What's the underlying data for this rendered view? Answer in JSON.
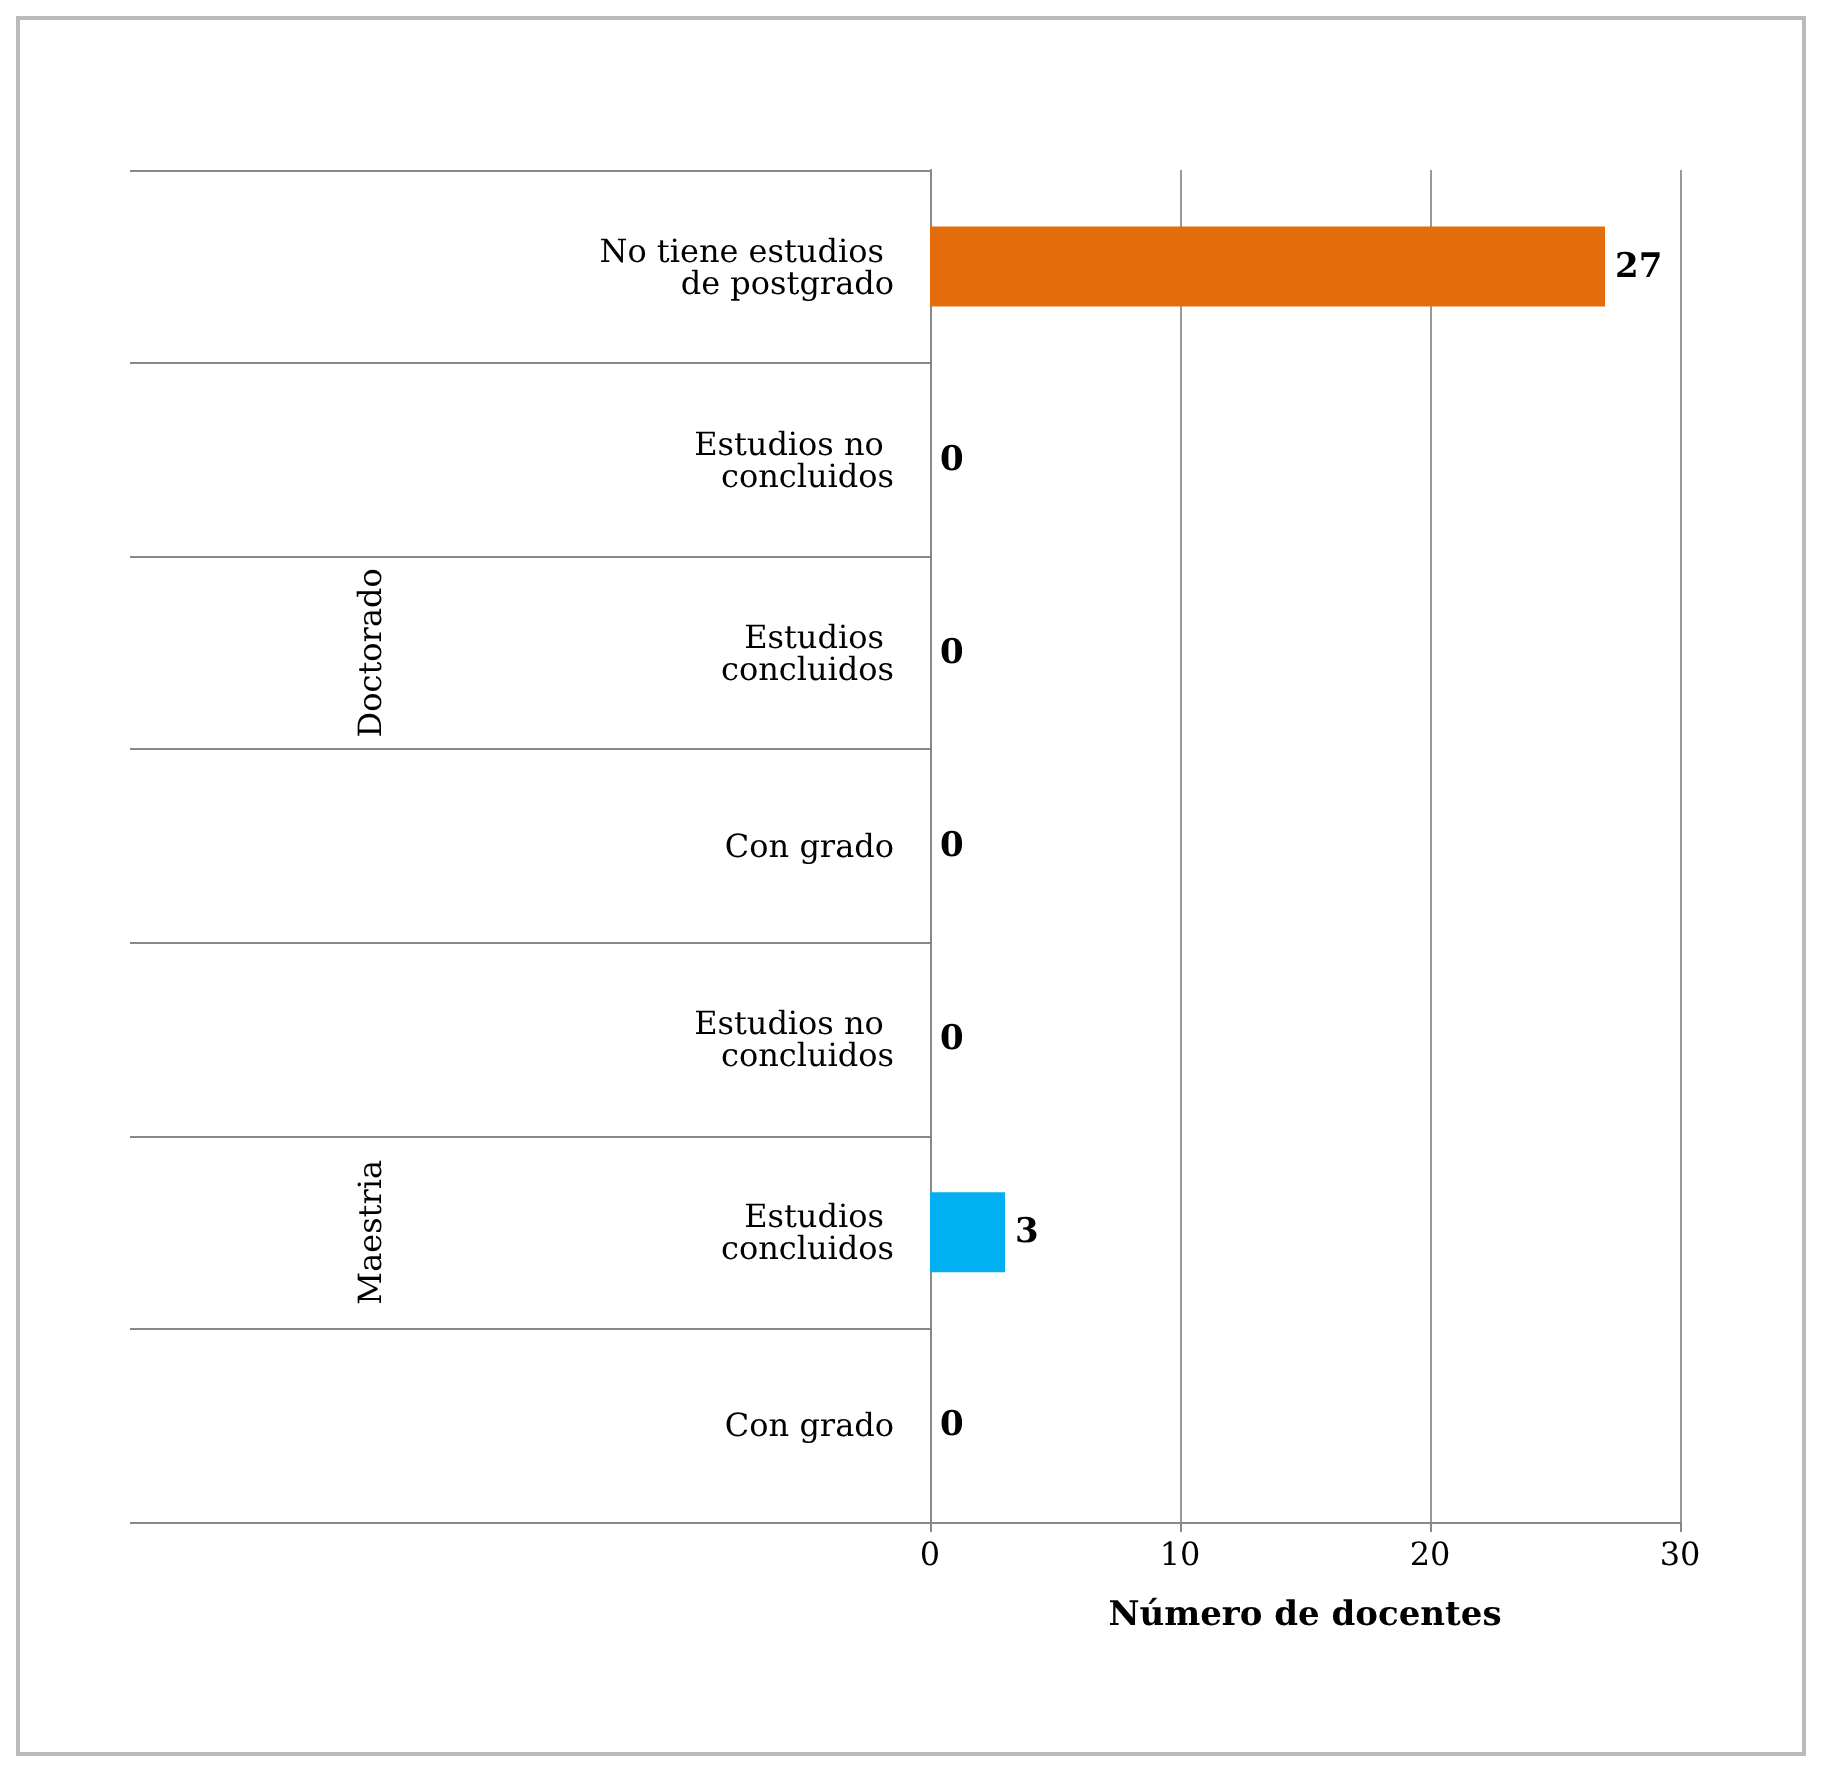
{
  "chart_data": {
    "type": "bar",
    "orientation": "horizontal",
    "xlabel": "Número de docentes",
    "categories": [
      "No tiene estudios de postgrado",
      "Estudios no concluidos",
      "Estudios concluidos",
      "Con grado",
      "Estudios no concluidos",
      "Estudios concluidos",
      "Con grado"
    ],
    "values": [
      27,
      0,
      0,
      0,
      0,
      3,
      0
    ],
    "colors": [
      "#e46c0a",
      "#1f6e8c",
      "#1f6e8c",
      "#1f6e8c",
      "#1f6e8c",
      "#00b0f0",
      "#1f6e8c"
    ],
    "xlim": [
      0,
      30
    ],
    "xticks": [
      0,
      10,
      20,
      30
    ],
    "grid": "x",
    "data_labels": true,
    "annotations": [
      "Doctorado",
      "Maestria"
    ]
  }
}
